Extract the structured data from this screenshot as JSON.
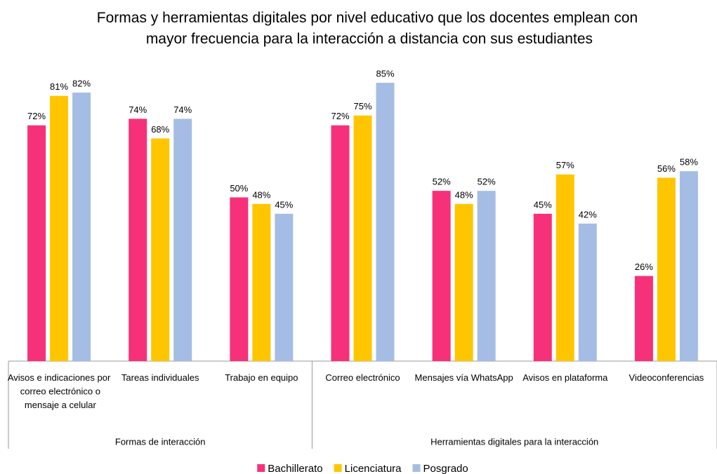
{
  "chart_data": {
    "type": "bar",
    "title": "Formas y herramientas digitales por nivel educativo que los docentes emplean con mayor frecuencia para la interacción a distancia con sus estudiantes",
    "groups": [
      {
        "name": "Formas de interacción",
        "categories": [
          "Avisos e indicaciones por correo electrónico o mensaje a celular",
          "Tareas individuales",
          "Trabajo en equipo"
        ]
      },
      {
        "name": "Herramientas digitales para la interacción",
        "categories": [
          "Correo electrónico",
          "Mensajes vía WhatsApp",
          "Avisos en plataforma",
          "Videoconferencias"
        ]
      }
    ],
    "series": [
      {
        "name": "Bachillerato",
        "color": "#f7307a",
        "values": [
          72,
          74,
          50,
          72,
          52,
          45,
          26
        ],
        "value_labels": [
          "72%",
          "74%",
          "50%",
          "72%",
          "52%",
          "45%",
          "26%"
        ]
      },
      {
        "name": "Licenciatura",
        "color": "#ffc600",
        "values": [
          81,
          68,
          48,
          75,
          48,
          57,
          56
        ],
        "value_labels": [
          "81%",
          "68%",
          "48%",
          "75%",
          "48%",
          "57%",
          "56%"
        ]
      },
      {
        "name": "Posgrado",
        "color": "#a5bde5",
        "values": [
          82,
          74,
          45,
          85,
          52,
          42,
          58
        ],
        "value_labels": [
          "82%",
          "74%",
          "45%",
          "85%",
          "52%",
          "42%",
          "58%"
        ]
      }
    ],
    "legend": "bottom"
  }
}
